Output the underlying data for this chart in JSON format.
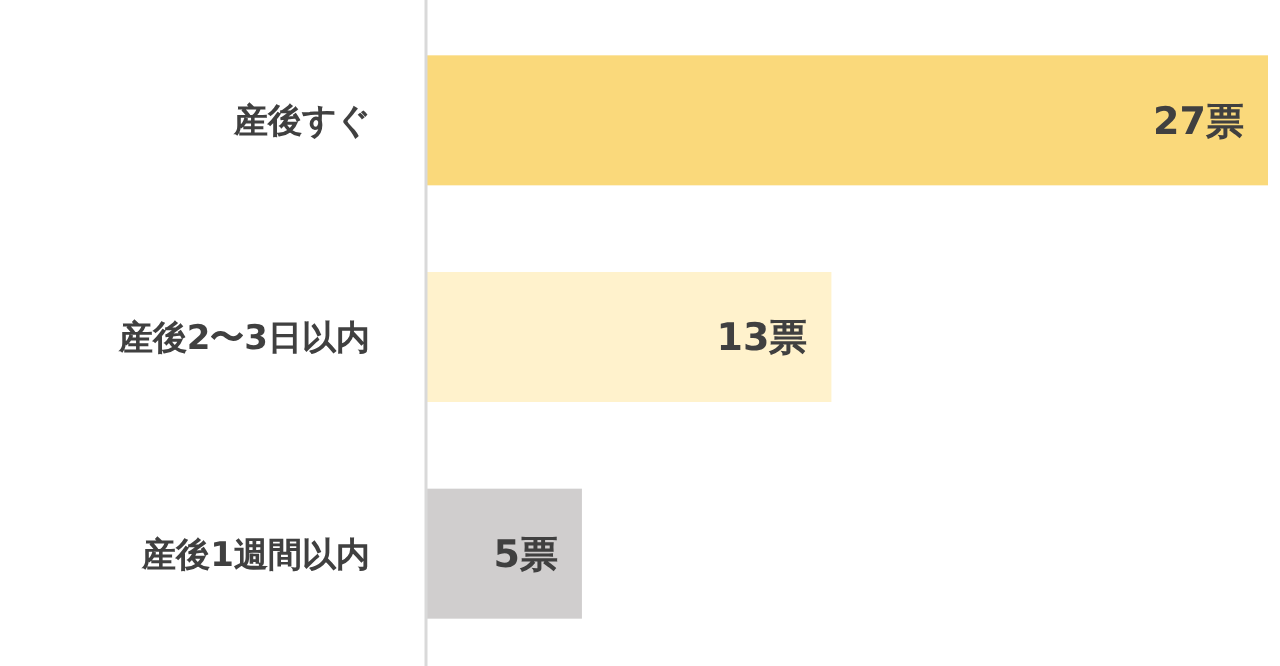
{
  "chart_data": {
    "type": "bar",
    "orientation": "horizontal",
    "categories": [
      "産後すぐ",
      "産後2〜3日以内",
      "産後1週間以内"
    ],
    "values": [
      27,
      13,
      5
    ],
    "colors": [
      "#fad97b",
      "#fff2cc",
      "#d0cece"
    ],
    "value_labels": [
      "27票",
      "13票",
      "5票"
    ]
  }
}
